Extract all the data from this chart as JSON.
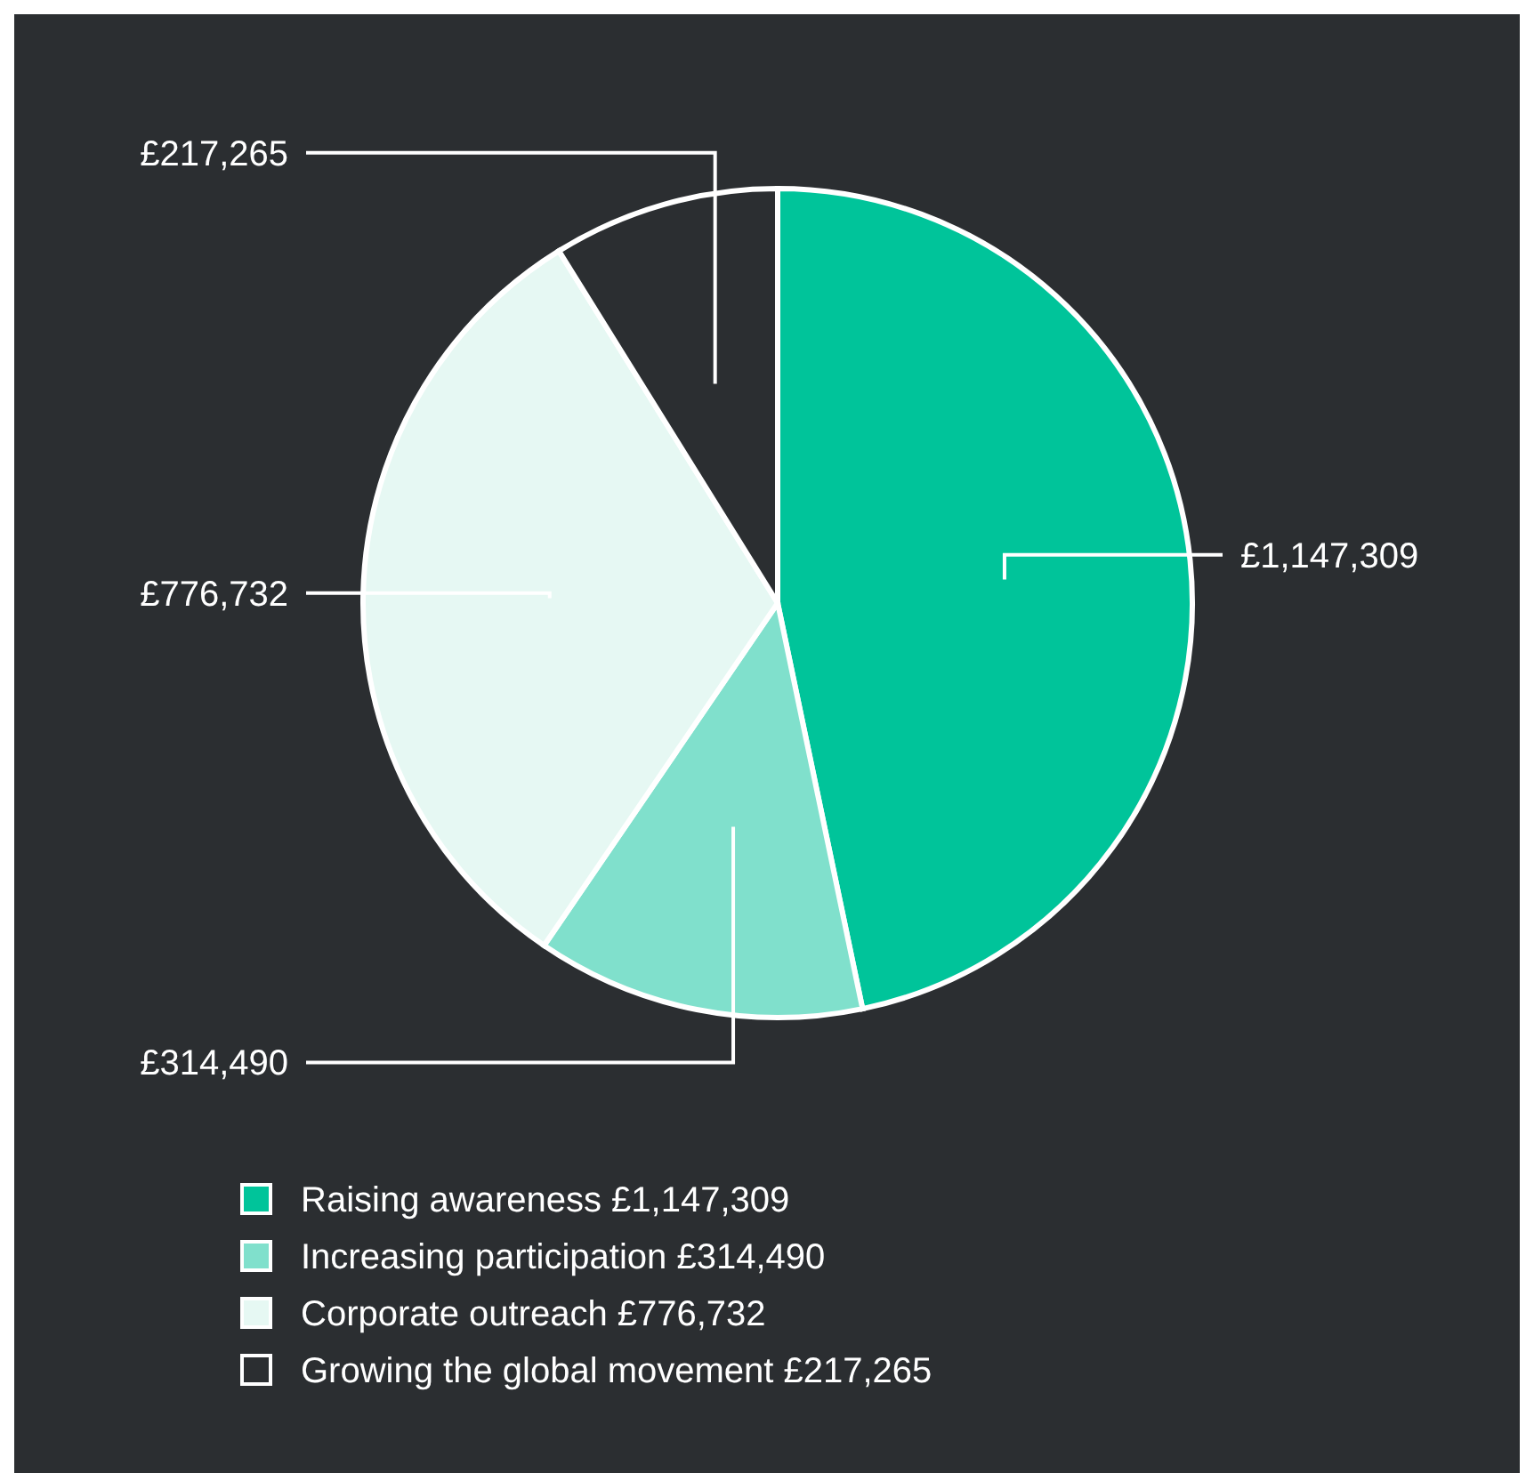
{
  "chart_data": {
    "type": "pie",
    "categories": [
      "Raising awareness",
      "Increasing participation",
      "Corporate outreach",
      "Growing the global movement"
    ],
    "values": [
      1147309,
      314490,
      776732,
      217265
    ],
    "value_labels": [
      "£1,147,309",
      "£314,490",
      "£776,732",
      "£217,265"
    ],
    "colors": [
      "#00c49a",
      "#80e0cc",
      "#e6f8f3",
      "#2b2e31"
    ],
    "legend": "bottom"
  }
}
